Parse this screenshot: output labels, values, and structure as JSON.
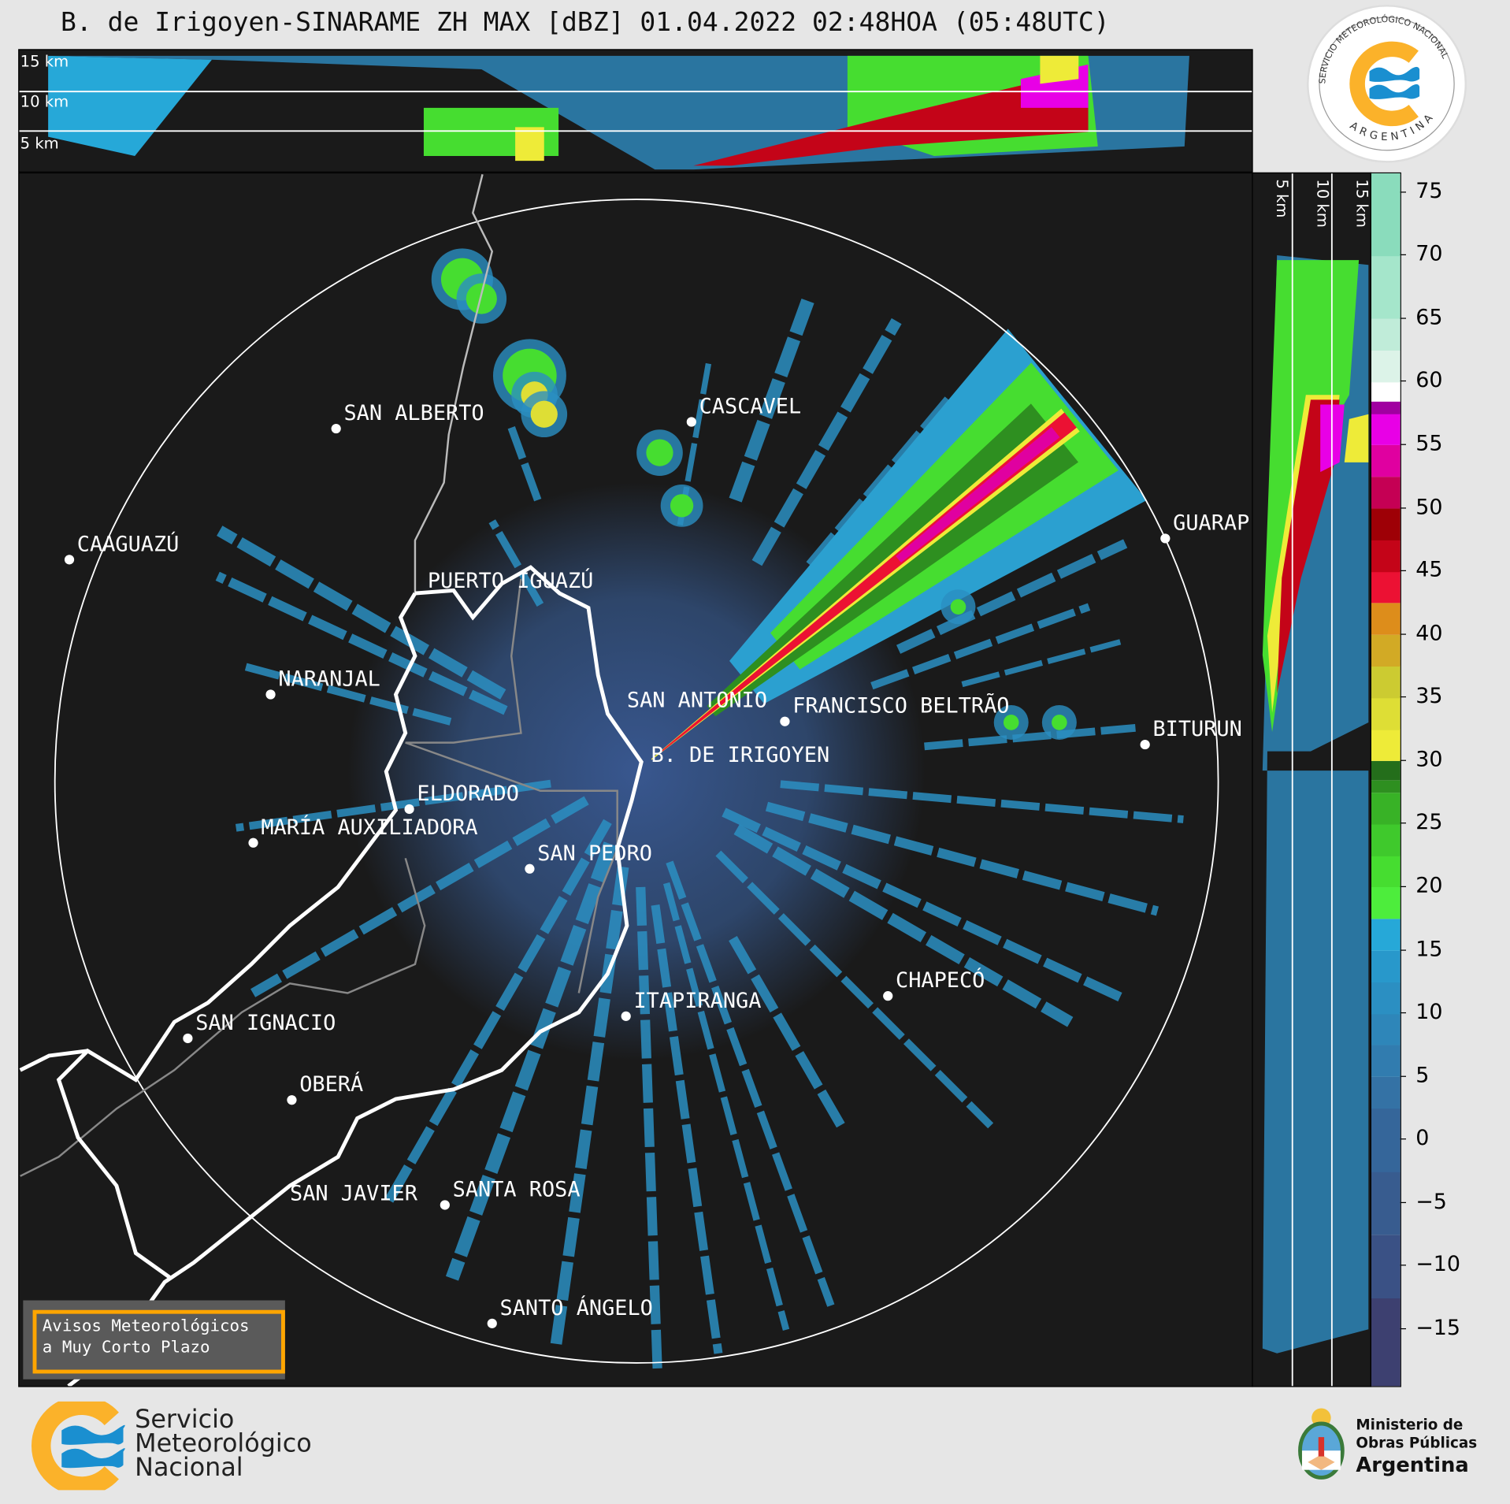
{
  "title": "B. de Irigoyen-SINARAME ZH MAX [dBZ] 01.04.2022 02:48HOA (05:48UTC)",
  "top_panel": {
    "height_labels": [
      "15 km",
      "10 km",
      "5 km"
    ]
  },
  "side_panel": {
    "height_labels": [
      "5 km",
      "10 km",
      "15 km"
    ]
  },
  "cities": [
    "SAN ALBERTO",
    "CASCAVEL",
    "CAAGUAZÚ",
    "GUARAP",
    "PUERTO IGUAZÚ",
    "NARANJAL",
    "SAN ANTONIO",
    "FRANCISCO BELTRÃO",
    "BITURUN",
    "B. DE IRIGOYEN",
    "ELDORADO",
    "MARÍA AUXILIADORA",
    "SAN PEDRO",
    "CHAPECÓ",
    "ITAPIRANGA",
    "SAN IGNACIO",
    "OBERÁ",
    "SAN JAVIER",
    "SANTA ROSA",
    "SANTO ÁNGELO"
  ],
  "colorbar": {
    "unit": "dBZ",
    "range": [
      -19.5,
      76.5
    ],
    "ticks": [
      "75",
      "70",
      "65",
      "60",
      "55",
      "50",
      "45",
      "40",
      "35",
      "30",
      "25",
      "20",
      "15",
      "10",
      "5",
      "0",
      "−5",
      "−10",
      "−15"
    ],
    "tick_values": [
      75,
      70,
      65,
      60,
      55,
      50,
      45,
      40,
      35,
      30,
      25,
      20,
      15,
      10,
      5,
      0,
      -5,
      -10,
      -15
    ],
    "bands": [
      [
        -19.5,
        "#3d4070"
      ],
      [
        -12.5,
        "#3a5185"
      ],
      [
        -7.5,
        "#385c8f"
      ],
      [
        -2.5,
        "#35669a"
      ],
      [
        2.5,
        "#3472a5"
      ],
      [
        5,
        "#317caf"
      ],
      [
        7.5,
        "#2e86b9"
      ],
      [
        10,
        "#2b8fc2"
      ],
      [
        12.5,
        "#2898cb"
      ],
      [
        15,
        "#26a8d8"
      ],
      [
        17.5,
        "#4ded3c"
      ],
      [
        20,
        "#46dd30"
      ],
      [
        22.5,
        "#3fc92c"
      ],
      [
        25,
        "#38b226"
      ],
      [
        27.5,
        "#2e8f20"
      ],
      [
        28.5,
        "#246e1b"
      ],
      [
        30,
        "#eeeb38"
      ],
      [
        32.5,
        "#dede35"
      ],
      [
        35,
        "#cccb31"
      ],
      [
        37.5,
        "#d2aa25"
      ],
      [
        40,
        "#dd8d1b"
      ],
      [
        42.5,
        "#ec1133"
      ],
      [
        45,
        "#c40418"
      ],
      [
        47.5,
        "#9e0006"
      ],
      [
        50,
        "#c50054"
      ],
      [
        52.5,
        "#e000a0"
      ],
      [
        55,
        "#e800e6"
      ],
      [
        57.5,
        "#a000a0"
      ],
      [
        58.5,
        "#ffffff"
      ],
      [
        60,
        "#dcf3e8"
      ],
      [
        62.5,
        "#c0ecd9"
      ],
      [
        65,
        "#a5e6cb"
      ],
      [
        70,
        "#8adcbc"
      ]
    ]
  },
  "avisos": {
    "line1": "Avisos Meteorológicos",
    "line2": "a Muy Corto Plazo"
  },
  "logo_smn_round": {
    "text_top": "SERVICIO METEOROLÓGICO NACIONAL",
    "text_bottom": "ARGENTINA"
  },
  "footer": {
    "smn": [
      "Servicio",
      "Meteorológico",
      "Nacional"
    ],
    "ministerio": [
      "Ministerio de",
      "Obras Públicas",
      "Argentina"
    ]
  },
  "colors": {
    "background": "#e6e6e6",
    "plot_bg": "#1a1a1a",
    "smn_orange": "#fbb22a",
    "smn_blue": "#1a8fd0",
    "avisos_border": "#ffa500"
  }
}
